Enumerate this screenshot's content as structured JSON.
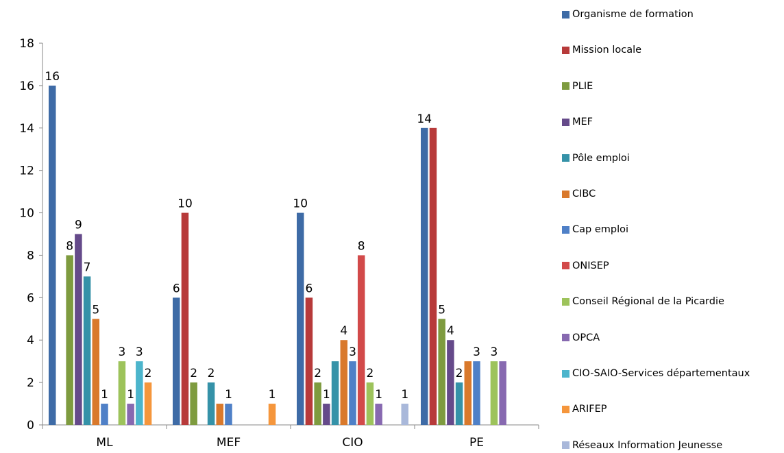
{
  "chart_data": {
    "type": "bar",
    "categories": [
      "ML",
      "MEF",
      "CIO",
      "PE"
    ],
    "ylim": [
      0,
      18
    ],
    "yticks": [
      0,
      2,
      4,
      6,
      8,
      10,
      12,
      14,
      16,
      18
    ],
    "legend_position": "right",
    "grid": false,
    "series": [
      {
        "name": "Organisme de formation",
        "color": "#3E6BA6",
        "values": [
          16,
          6,
          10,
          14
        ],
        "labels": [
          "16",
          "6",
          "10",
          "14"
        ]
      },
      {
        "name": "Mission locale",
        "color": "#B73A3A",
        "values": [
          null,
          10,
          6,
          14
        ],
        "labels": [
          "",
          "10",
          "6",
          ""
        ]
      },
      {
        "name": "PLIE",
        "color": "#7E9B3F",
        "values": [
          8,
          2,
          2,
          5
        ],
        "labels": [
          "8",
          "2",
          "2",
          "5"
        ]
      },
      {
        "name": "MEF",
        "color": "#654A8A",
        "values": [
          9,
          null,
          1,
          4
        ],
        "labels": [
          "9",
          "",
          "1",
          "4"
        ]
      },
      {
        "name": "Pôle emploi",
        "color": "#3592A8",
        "values": [
          7,
          2,
          3,
          2
        ],
        "labels": [
          "7",
          "2",
          "",
          "2"
        ]
      },
      {
        "name": "CIBC",
        "color": "#D9792C",
        "values": [
          5,
          1,
          4,
          3
        ],
        "labels": [
          "5",
          "",
          "4",
          ""
        ]
      },
      {
        "name": "Cap emploi",
        "color": "#4F80C7",
        "values": [
          1,
          1,
          3,
          3
        ],
        "labels": [
          "1",
          "1",
          "3",
          "3"
        ]
      },
      {
        "name": "ONISEP",
        "color": "#D24A4A",
        "values": [
          null,
          null,
          8,
          null
        ],
        "labels": [
          "",
          "",
          "8",
          ""
        ]
      },
      {
        "name": "Conseil Régional de la Picardie",
        "color": "#9DC35B",
        "values": [
          3,
          null,
          2,
          3
        ],
        "labels": [
          "3",
          "",
          "2",
          "3"
        ]
      },
      {
        "name": "OPCA",
        "color": "#8769B0",
        "values": [
          1,
          null,
          1,
          3
        ],
        "labels": [
          "1",
          "",
          "1",
          ""
        ]
      },
      {
        "name": "CIO-SAIO-Services départementaux",
        "color": "#4CB5CC",
        "values": [
          3,
          null,
          null,
          null
        ],
        "labels": [
          "3",
          "",
          "",
          ""
        ]
      },
      {
        "name": "ARIFEP",
        "color": "#F5963C",
        "values": [
          2,
          1,
          null,
          null
        ],
        "labels": [
          "2",
          "1",
          "",
          ""
        ]
      },
      {
        "name": "Réseaux Information Jeunesse",
        "color": "#A9B8DA",
        "values": [
          null,
          null,
          1,
          null
        ],
        "labels": [
          "",
          "",
          "1",
          ""
        ]
      }
    ]
  }
}
